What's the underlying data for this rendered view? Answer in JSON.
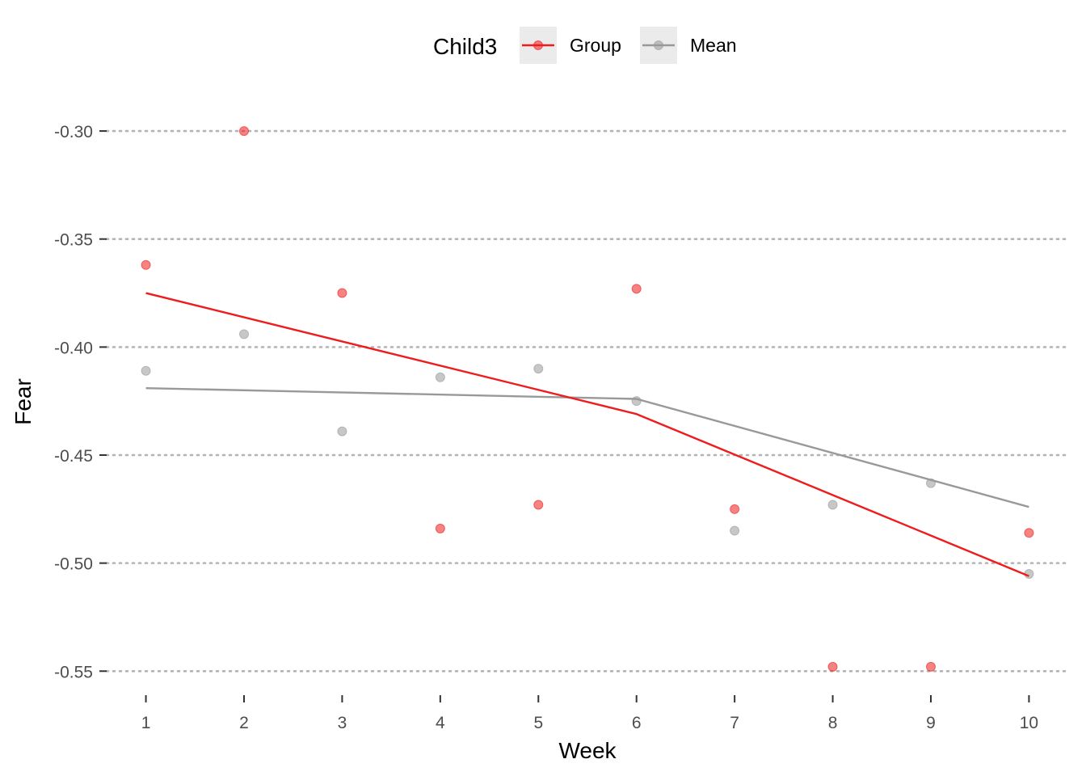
{
  "chart_data": {
    "type": "line",
    "title": "",
    "xlabel": "Week",
    "ylabel": "Fear",
    "x": [
      1,
      2,
      3,
      4,
      5,
      6,
      7,
      8,
      9,
      10
    ],
    "xlim": [
      0.6,
      10.4
    ],
    "ylim": [
      -0.56,
      -0.285
    ],
    "yticks": [
      -0.3,
      -0.35,
      -0.4,
      -0.45,
      -0.5,
      -0.55
    ],
    "ytick_labels": [
      "-0.30",
      "-0.35",
      "-0.40",
      "-0.45",
      "-0.50",
      "-0.55"
    ],
    "xtick_labels": [
      "1",
      "2",
      "3",
      "4",
      "5",
      "6",
      "7",
      "8",
      "9",
      "10"
    ],
    "grid": "horizontal-dotted",
    "legend": {
      "title": "Child3",
      "placement": "top-center"
    },
    "series": [
      {
        "name": "Group",
        "color": "#ee1c1c",
        "points": [
          -0.362,
          -0.3,
          -0.375,
          -0.484,
          -0.473,
          -0.373,
          -0.475,
          -0.548,
          -0.548,
          -0.486
        ],
        "fit": [
          [
            1,
            -0.375
          ],
          [
            6,
            -0.431
          ],
          [
            10,
            -0.506
          ]
        ]
      },
      {
        "name": "Mean",
        "color": "#999999",
        "points": [
          -0.411,
          -0.394,
          -0.439,
          -0.414,
          -0.41,
          -0.425,
          -0.485,
          -0.473,
          -0.463,
          -0.505
        ],
        "fit": [
          [
            1,
            -0.419
          ],
          [
            6,
            -0.424
          ],
          [
            10,
            -0.474
          ]
        ]
      }
    ]
  }
}
